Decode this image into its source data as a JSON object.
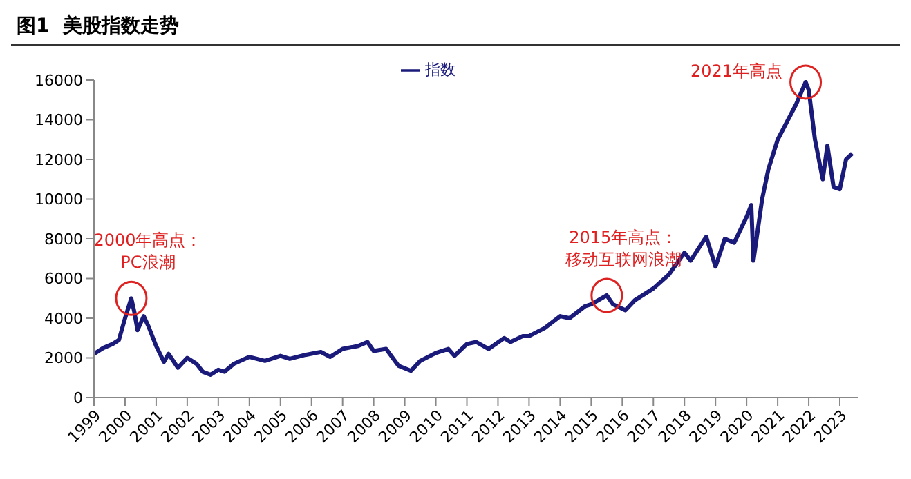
{
  "chart_data": {
    "type": "line",
    "title": "图1  美股指数走势",
    "xlim": [
      1999,
      2023.6
    ],
    "xticks": [
      1999,
      2000,
      2001,
      2002,
      2003,
      2004,
      2005,
      2006,
      2007,
      2008,
      2009,
      2010,
      2011,
      2012,
      2013,
      2014,
      2015,
      2016,
      2017,
      2018,
      2019,
      2020,
      2021,
      2022,
      2023
    ],
    "ylim": [
      0,
      16000
    ],
    "yticks": [
      0,
      2000,
      4000,
      6000,
      8000,
      10000,
      12000,
      14000,
      16000
    ],
    "legend": "top",
    "marker": "none",
    "line_style": "solid",
    "x": [
      1999.0,
      1999.3,
      1999.6,
      1999.8,
      2000.0,
      2000.2,
      2000.3,
      2000.4,
      2000.6,
      2000.75,
      2001.0,
      2001.25,
      2001.4,
      2001.7,
      2002.0,
      2002.3,
      2002.5,
      2002.75,
      2003.0,
      2003.2,
      2003.5,
      2004.0,
      2004.5,
      2005.0,
      2005.3,
      2005.8,
      2006.3,
      2006.6,
      2007.0,
      2007.5,
      2007.8,
      2008.0,
      2008.4,
      2008.8,
      2009.2,
      2009.5,
      2010.0,
      2010.4,
      2010.6,
      2011.0,
      2011.3,
      2011.7,
      2012.2,
      2012.4,
      2012.8,
      2013.0,
      2013.5,
      2014.0,
      2014.3,
      2014.8,
      2015.0,
      2015.5,
      2015.7,
      2016.1,
      2016.4,
      2016.8,
      2017.0,
      2017.5,
      2018.0,
      2018.2,
      2018.7,
      2019.0,
      2019.3,
      2019.6,
      2020.0,
      2020.15,
      2020.22,
      2020.5,
      2020.7,
      2021.0,
      2021.3,
      2021.6,
      2021.9,
      2022.0,
      2022.2,
      2022.45,
      2022.6,
      2022.8,
      2023.0,
      2023.2,
      2023.4
    ],
    "series": [
      {
        "name": "指数",
        "color": "#1a1a7a",
        "values": [
          2200,
          2500,
          2700,
          2900,
          4000,
          5000,
          4300,
          3400,
          4100,
          3600,
          2600,
          1800,
          2200,
          1500,
          2000,
          1700,
          1300,
          1150,
          1400,
          1300,
          1700,
          2050,
          1850,
          2100,
          1950,
          2150,
          2300,
          2050,
          2450,
          2600,
          2800,
          2350,
          2450,
          1600,
          1350,
          1850,
          2250,
          2450,
          2100,
          2700,
          2800,
          2450,
          3000,
          2800,
          3100,
          3100,
          3500,
          4100,
          4000,
          4600,
          4700,
          5150,
          4700,
          4400,
          4900,
          5300,
          5500,
          6200,
          7300,
          6900,
          8100,
          6600,
          8000,
          7800,
          9100,
          9700,
          6900,
          10000,
          11500,
          13000,
          13900,
          14800,
          15900,
          15500,
          13000,
          11000,
          12700,
          10600,
          10500,
          12000,
          12300
        ]
      }
    ],
    "annotations": [
      {
        "text": "2000年高点：PC浪潮",
        "x": 2000.2,
        "y": 5000
      },
      {
        "text": "2015年高点：移动互联网浪潮",
        "x": 2015.5,
        "y": 5150
      },
      {
        "text": "2021年高点",
        "x": 2021.9,
        "y": 15900
      }
    ]
  }
}
